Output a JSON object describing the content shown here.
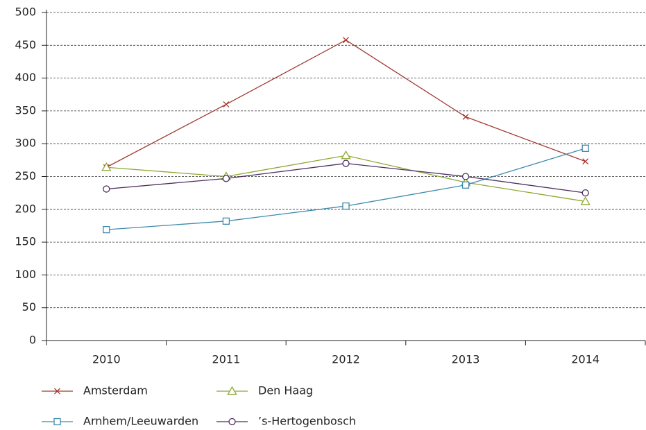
{
  "chart_data": {
    "type": "line",
    "categories": [
      "2010",
      "2011",
      "2012",
      "2013",
      "2014"
    ],
    "series": [
      {
        "name": "Amsterdam",
        "color": "#a33a32",
        "marker": "x",
        "values": [
          264,
          360,
          458,
          341,
          273
        ]
      },
      {
        "name": "Den Haag",
        "color": "#8fa733",
        "marker": "triangle",
        "values": [
          264,
          250,
          282,
          241,
          212
        ]
      },
      {
        "name": "Arnhem/Leeuwarden",
        "color": "#3f8bab",
        "marker": "square",
        "values": [
          169,
          182,
          205,
          237,
          293
        ]
      },
      {
        "name": "’s-Hertogenbosch",
        "color": "#4b2c5f",
        "marker": "circle",
        "values": [
          231,
          247,
          270,
          250,
          225
        ]
      }
    ],
    "ylim": [
      0,
      500
    ],
    "yticks": [
      0,
      50,
      100,
      150,
      200,
      250,
      300,
      350,
      400,
      450,
      500
    ],
    "grid": true
  }
}
